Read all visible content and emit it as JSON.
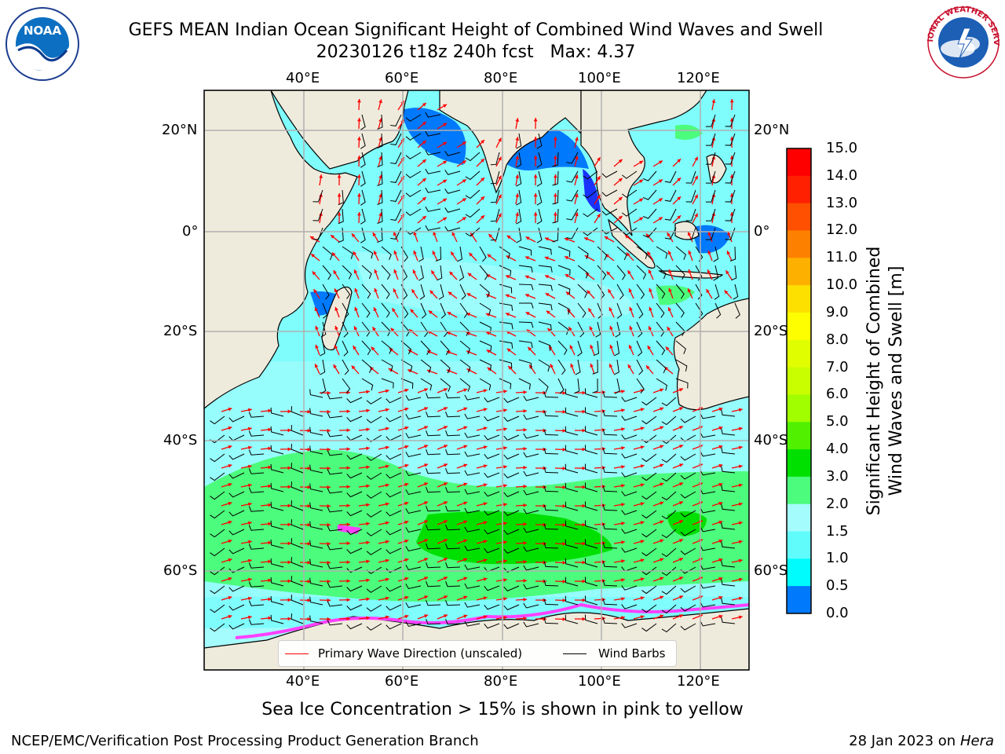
{
  "title": {
    "line1": "GEFS MEAN Indian Ocean Significant Height of Combined Wind Waves and Swell",
    "line2": "20230126 t18z 240h fcst   Max: 4.37"
  },
  "logos": {
    "left": "NOAA",
    "right": "NATIONAL WEATHER SERVICE"
  },
  "map": {
    "lon_ticks": [
      "40°E",
      "60°E",
      "80°E",
      "100°E",
      "120°E"
    ],
    "lat_ticks_left": [
      "20°N",
      "0°",
      "20°S",
      "40°S",
      "60°S"
    ],
    "lat_ticks_right": [
      "20°N",
      "0°",
      "20°S",
      "40°S",
      "60°S"
    ],
    "colors": {
      "land": "#efebdc",
      "water_low": "#7ffcfc",
      "water_mid": "#a5fcfc",
      "water_green": "#4cfc7c",
      "water_strong": "#00e000",
      "water_shallow": "#0079fc",
      "ice_pink": "#ff40ff",
      "wave_arrow": "#ff0000",
      "wind_barb": "#000000"
    }
  },
  "legend": {
    "wave_label": "Primary Wave Direction (unscaled)",
    "wind_label": "Wind Barbs"
  },
  "colorbar": {
    "ticks": [
      "15.0",
      "14.0",
      "13.0",
      "12.0",
      "11.0",
      "10.0",
      "9.0",
      "8.0",
      "7.0",
      "6.0",
      "5.0",
      "4.0",
      "3.0",
      "2.0",
      "1.5",
      "1.0",
      "0.5",
      "0.0"
    ],
    "label_line1": "Significant Height of Combined",
    "label_line2": "Wind Waves and Swell [m]",
    "colors": [
      "#fe0000",
      "#fe2000",
      "#fe5000",
      "#fe8000",
      "#feb000",
      "#fee000",
      "#fefe00",
      "#e0fe00",
      "#c8fe00",
      "#a0fe00",
      "#50f000",
      "#00e000",
      "#4cfc7c",
      "#a5fcfc",
      "#60fcfc",
      "#00fcfc",
      "#0079fc",
      "#0000fc"
    ]
  },
  "ice_note": "Sea Ice Concentration > 15% is shown in pink to yellow",
  "footer": {
    "left": "NCEP/EMC/Verification Post Processing Product Generation Branch",
    "right_date": "28 Jan 2023 on ",
    "right_host": "Hera"
  }
}
